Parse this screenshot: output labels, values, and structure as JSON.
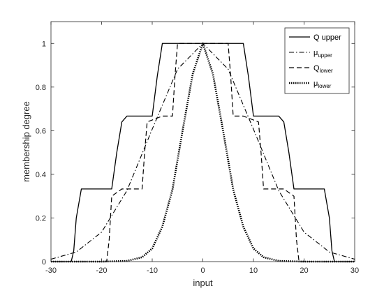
{
  "chart_data": {
    "type": "line",
    "xlabel": "input",
    "ylabel": "membership degree",
    "xlim": [
      -30,
      30
    ],
    "ylim": [
      0,
      1.1
    ],
    "x_ticks": [
      -30,
      -20,
      -10,
      0,
      10,
      20,
      30
    ],
    "y_ticks": [
      0,
      0.2,
      0.4,
      0.6,
      0.8,
      1
    ],
    "x_tick_labels": [
      "-30",
      "-20",
      "-10",
      "0",
      "10",
      "20",
      "30"
    ],
    "y_tick_labels": [
      "0",
      "0.2",
      "0.4",
      "0.6",
      "0.8",
      "1"
    ],
    "grid": false,
    "legend_position": "top-right",
    "series": [
      {
        "name": "Q upper",
        "legend_main": "Q upper",
        "legend_sub": "",
        "style": "solid",
        "x": [
          -30,
          -26,
          -25.5,
          -25,
          -24,
          -18,
          -17,
          -16,
          -15,
          -10,
          -9,
          -8,
          0,
          8,
          9,
          10,
          15,
          16,
          17,
          18,
          24,
          25,
          25.5,
          26,
          30
        ],
        "y": [
          0,
          0,
          0.05,
          0.2,
          0.333,
          0.333,
          0.5,
          0.64,
          0.667,
          0.667,
          0.85,
          1,
          1,
          1,
          0.85,
          0.667,
          0.667,
          0.64,
          0.5,
          0.333,
          0.333,
          0.2,
          0.05,
          0,
          0
        ]
      },
      {
        "name": "mu upper",
        "legend_main": "μ",
        "legend_sub": "upper",
        "style": "dashdot",
        "x": [
          -30,
          -25,
          -20,
          -15,
          -10,
          -5,
          0,
          5,
          10,
          15,
          20,
          25,
          30
        ],
        "y": [
          0.011,
          0.044,
          0.135,
          0.325,
          0.607,
          0.882,
          1,
          0.882,
          0.607,
          0.325,
          0.135,
          0.044,
          0.011
        ]
      },
      {
        "name": "Q lower",
        "legend_main": "Q",
        "legend_sub": "lower",
        "style": "dashed",
        "x": [
          -30,
          -19,
          -18.5,
          -18,
          -16,
          -12,
          -11.5,
          -11,
          -8,
          -6,
          -5.5,
          -5,
          0,
          5,
          5.5,
          6,
          8,
          11,
          11.5,
          12,
          16,
          18,
          18.5,
          19,
          30
        ],
        "y": [
          0,
          0,
          0.1,
          0.3,
          0.333,
          0.333,
          0.5,
          0.64,
          0.667,
          0.667,
          0.85,
          1,
          1,
          1,
          0.85,
          0.667,
          0.667,
          0.64,
          0.5,
          0.333,
          0.333,
          0.3,
          0.1,
          0,
          0
        ]
      },
      {
        "name": "mu lower",
        "legend_main": "μ",
        "legend_sub": "lower",
        "style": "dotted",
        "x": [
          -30,
          -20,
          -15,
          -12,
          -10,
          -8,
          -6,
          -4,
          -2,
          0,
          2,
          4,
          6,
          8,
          10,
          12,
          15,
          20,
          30
        ],
        "y": [
          0,
          0,
          0.003,
          0.02,
          0.06,
          0.16,
          0.33,
          0.6,
          0.86,
          1,
          0.86,
          0.6,
          0.33,
          0.16,
          0.06,
          0.02,
          0.003,
          0,
          0
        ]
      }
    ]
  }
}
